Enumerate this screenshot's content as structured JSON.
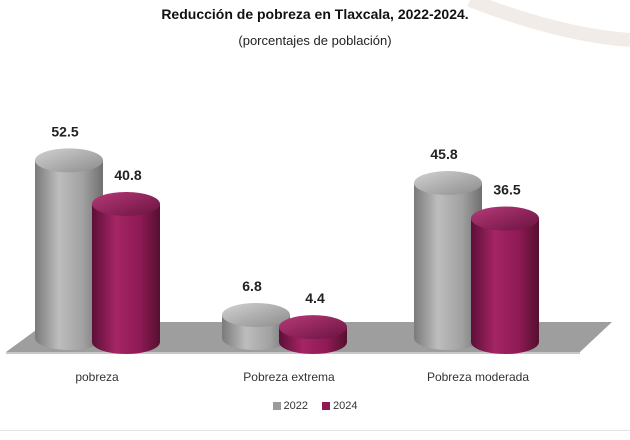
{
  "chart_data": {
    "type": "bar",
    "title": "Reducción de pobreza en Tlaxcala, 2022-2024.",
    "subtitle": "(porcentajes de población)",
    "categories": [
      "pobreza",
      "Pobreza extrema",
      "Pobreza moderada"
    ],
    "series": [
      {
        "name": "2022",
        "values": [
          52.5,
          6.8,
          45.8
        ],
        "color": "#9b9b9b"
      },
      {
        "name": "2024",
        "values": [
          40.8,
          4.4,
          36.5
        ],
        "color": "#8e1a55"
      }
    ],
    "value_labels": [
      [
        "52.5",
        "6.8",
        "45.8"
      ],
      [
        "40.8",
        "4.4",
        "36.5"
      ]
    ],
    "ylim": [
      0,
      60
    ],
    "grid": false,
    "legend_position": "bottom",
    "style": "3d-cylinder"
  }
}
